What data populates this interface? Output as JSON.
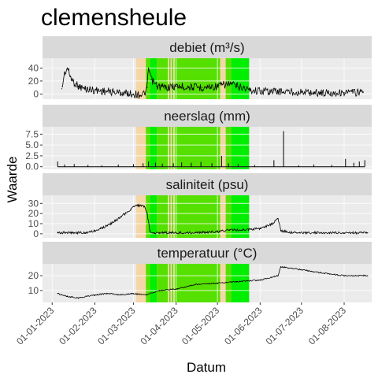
{
  "chart_data": {
    "type": "line",
    "title": "clemensheule",
    "xlabel": "Datum",
    "ylabel": "Waarde",
    "x_range": [
      "2022-12-25",
      "2023-08-21"
    ],
    "x_ticks": [
      "01-01-2023",
      "01-02-2023",
      "01-03-2023",
      "01-04-2023",
      "01-05-2023",
      "01-06-2023",
      "01-07-2023",
      "01-08-2023"
    ],
    "facet_scales": "free_y",
    "grid": true,
    "colors": {
      "series_line": "#000000",
      "highlight_line": "#4a2a10",
      "period_orange": "#f5d6a8",
      "period_green": "#55e000",
      "period_bright_green": "#00ee00",
      "panel_bg": "#ebebeb",
      "strip_bg": "#d9d9d9"
    },
    "highlight_periods": [
      {
        "start": "2023-03-03",
        "end": "2023-03-10",
        "color": "period_orange"
      },
      {
        "start": "2023-03-10",
        "end": "2023-03-13",
        "color": "period_green"
      },
      {
        "start": "2023-03-13",
        "end": "2023-03-18",
        "color": "period_bright_green"
      },
      {
        "start": "2023-03-18",
        "end": "2023-03-26",
        "color": "period_green"
      },
      {
        "start": "2023-03-26",
        "end": "2023-03-27",
        "color": "period_orange"
      },
      {
        "start": "2023-03-27",
        "end": "2023-03-28",
        "color": "period_green"
      },
      {
        "start": "2023-03-28",
        "end": "2023-03-29",
        "color": "period_orange"
      },
      {
        "start": "2023-03-29",
        "end": "2023-03-30",
        "color": "period_green"
      },
      {
        "start": "2023-03-30",
        "end": "2023-03-31",
        "color": "period_orange"
      },
      {
        "start": "2023-03-31",
        "end": "2023-05-03",
        "color": "period_green"
      },
      {
        "start": "2023-05-03",
        "end": "2023-05-07",
        "color": "period_orange"
      },
      {
        "start": "2023-05-07",
        "end": "2023-05-11",
        "color": "period_green"
      },
      {
        "start": "2023-05-11",
        "end": "2023-05-24",
        "color": "period_bright_green"
      }
    ],
    "panels": [
      {
        "name": "debiet (m³/s)",
        "ylim": [
          -8,
          55
        ],
        "yticks": [
          0,
          20,
          40
        ],
        "series": [
          {
            "x": [
              "2023-01-08",
              "2023-01-10",
              "2023-01-12",
              "2023-01-14",
              "2023-01-16",
              "2023-01-18",
              "2023-01-20",
              "2023-01-22",
              "2023-01-25",
              "2023-01-28",
              "2023-02-01",
              "2023-02-05",
              "2023-02-10",
              "2023-02-15",
              "2023-02-20",
              "2023-02-25",
              "2023-03-01",
              "2023-03-05",
              "2023-03-09",
              "2023-03-11",
              "2023-03-12",
              "2023-03-14",
              "2023-03-18",
              "2023-03-25",
              "2023-04-01",
              "2023-04-10",
              "2023-04-20",
              "2023-05-01",
              "2023-05-10",
              "2023-05-15",
              "2023-05-20",
              "2023-05-25",
              "2023-06-01",
              "2023-06-15",
              "2023-07-01",
              "2023-07-15",
              "2023-08-01",
              "2023-08-15"
            ],
            "y": [
              8,
              32,
              40,
              28,
              20,
              16,
              12,
              10,
              8,
              7,
              6,
              5,
              4,
              3,
              2,
              1,
              0,
              -1,
              0,
              10,
              40,
              22,
              12,
              10,
              12,
              11,
              10,
              12,
              16,
              12,
              10,
              6,
              5,
              4,
              3,
              2,
              2,
              3
            ]
          }
        ]
      },
      {
        "name": "neerslag (mm)",
        "ylim": [
          -0.6,
          9.2
        ],
        "yticks": [
          0.0,
          2.5,
          5.0,
          7.5
        ],
        "series": [
          {
            "x": [
              "2023-01-05",
              "2023-01-10",
              "2023-01-17",
              "2023-01-27",
              "2023-02-06",
              "2023-02-18",
              "2023-03-01",
              "2023-03-08",
              "2023-03-12",
              "2023-03-17",
              "2023-03-22",
              "2023-03-30",
              "2023-04-05",
              "2023-04-12",
              "2023-04-19",
              "2023-04-27",
              "2023-05-04",
              "2023-05-09",
              "2023-05-16",
              "2023-05-28",
              "2023-06-11",
              "2023-06-18",
              "2023-06-29",
              "2023-07-10",
              "2023-07-23",
              "2023-08-02",
              "2023-08-08",
              "2023-08-12",
              "2023-08-16"
            ],
            "y": [
              1.2,
              0.5,
              0.6,
              0.4,
              0.3,
              0.5,
              0.6,
              0.8,
              1.2,
              0.9,
              0.7,
              0.8,
              1.0,
              0.9,
              1.1,
              0.8,
              2.5,
              0.8,
              0.6,
              0.4,
              1.5,
              8.2,
              0.3,
              0.5,
              0.4,
              1.8,
              0.9,
              1.2,
              1.5
            ]
          }
        ]
      },
      {
        "name": "saliniteit (psu)",
        "ylim": [
          -4,
          38
        ],
        "yticks": [
          0,
          10,
          20,
          30
        ],
        "series": [
          {
            "x": [
              "2023-01-05",
              "2023-01-15",
              "2023-01-25",
              "2023-02-01",
              "2023-02-05",
              "2023-02-10",
              "2023-02-15",
              "2023-02-19",
              "2023-02-23",
              "2023-02-27",
              "2023-03-01",
              "2023-03-05",
              "2023-03-09",
              "2023-03-11",
              "2023-03-13",
              "2023-03-16",
              "2023-03-23",
              "2023-04-01",
              "2023-04-15",
              "2023-05-01",
              "2023-05-10",
              "2023-05-20",
              "2023-06-01",
              "2023-06-10",
              "2023-06-14",
              "2023-06-16",
              "2023-06-25",
              "2023-07-15",
              "2023-08-01",
              "2023-08-18"
            ],
            "y": [
              1,
              1,
              1,
              3,
              5,
              8,
              12,
              16,
              20,
              24,
              27,
              28,
              27,
              20,
              3,
              1,
              1,
              1,
              1,
              2,
              4,
              4,
              5,
              10,
              15,
              3,
              1,
              1,
              1,
              1
            ]
          }
        ]
      },
      {
        "name": "temperatuur (°C)",
        "ylim": [
          2,
          28
        ],
        "yticks": [
          10,
          20
        ],
        "series": [
          {
            "x": [
              "2023-01-05",
              "2023-01-12",
              "2023-01-20",
              "2023-02-01",
              "2023-02-10",
              "2023-02-20",
              "2023-03-01",
              "2023-03-10",
              "2023-03-20",
              "2023-04-01",
              "2023-04-15",
              "2023-05-01",
              "2023-05-15",
              "2023-06-01",
              "2023-06-14",
              "2023-06-16",
              "2023-07-01",
              "2023-07-15",
              "2023-08-01",
              "2023-08-18"
            ],
            "y": [
              8,
              6,
              5,
              7,
              8,
              7,
              8,
              7,
              10,
              11,
              14,
              15,
              16,
              17,
              20,
              26,
              24,
              22,
              20,
              20
            ]
          }
        ]
      }
    ]
  }
}
